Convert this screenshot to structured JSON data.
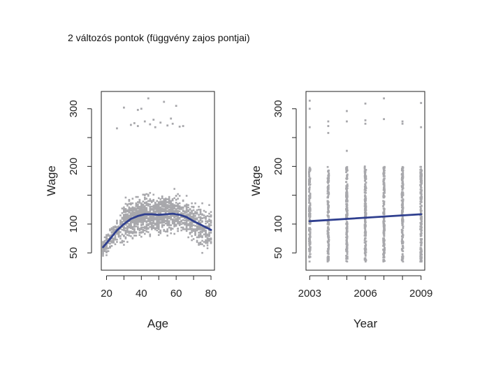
{
  "slide": {
    "title": "2 változós pontok (függvény zajos pontjai)"
  },
  "colors": {
    "points": "#a8a8ac",
    "curve": "#2f3f8f",
    "axis": "#222222"
  },
  "chart_data": [
    {
      "type": "scatter",
      "xlabel": "Age",
      "ylabel": "Wage",
      "xlim": [
        17,
        82
      ],
      "ylim": [
        20,
        330
      ],
      "xticks": [
        20,
        30,
        40,
        50,
        60,
        70,
        80
      ],
      "xtick_labels": [
        "20",
        "",
        "40",
        "",
        "60",
        "",
        "80"
      ],
      "yticks": [
        50,
        100,
        150,
        200,
        250,
        300
      ],
      "ytick_labels": [
        "50",
        "100",
        "",
        "200",
        "",
        "300"
      ],
      "fit_curve": {
        "x": [
          18,
          20,
          23,
          26,
          30,
          34,
          38,
          42,
          46,
          50,
          54,
          58,
          62,
          66,
          70,
          74,
          78,
          80
        ],
        "y": [
          60,
          67,
          78,
          89,
          100,
          109,
          114,
          117,
          117,
          116,
          117,
          118,
          116,
          112,
          105,
          99,
          93,
          90
        ]
      },
      "points": [
        [
          34,
          272
        ],
        [
          36,
          275
        ],
        [
          38,
          270
        ],
        [
          42,
          278
        ],
        [
          45,
          273
        ],
        [
          48,
          268
        ],
        [
          51,
          276
        ],
        [
          55,
          271
        ],
        [
          58,
          274
        ],
        [
          62,
          269
        ],
        [
          40,
          300
        ],
        [
          44,
          318
        ],
        [
          53,
          312
        ],
        [
          38,
          298
        ],
        [
          60,
          305
        ],
        [
          26,
          266
        ],
        [
          64,
          270
        ],
        [
          30,
          302
        ],
        [
          57,
          283
        ],
        [
          47,
          281
        ]
      ],
      "band_ranges": [
        [
          20,
          80,
          40,
          200
        ]
      ]
    },
    {
      "type": "scatter",
      "xlabel": "Year",
      "ylabel": "Wage",
      "xlim": [
        2002.8,
        2009.2
      ],
      "ylim": [
        20,
        330
      ],
      "xticks": [
        2003,
        2004,
        2005,
        2006,
        2007,
        2008,
        2009
      ],
      "xtick_labels": [
        "2003",
        "",
        "",
        "2006",
        "",
        "",
        "2009"
      ],
      "yticks": [
        50,
        100,
        150,
        200,
        250,
        300
      ],
      "ytick_labels": [
        "50",
        "100",
        "",
        "200",
        "",
        "300"
      ],
      "fit_curve": {
        "x": [
          2003,
          2009
        ],
        "y": [
          105,
          117
        ]
      },
      "points": [
        [
          2003,
          314
        ],
        [
          2003,
          300
        ],
        [
          2003,
          268
        ],
        [
          2004,
          278
        ],
        [
          2004,
          270
        ],
        [
          2004,
          258
        ],
        [
          2005,
          296
        ],
        [
          2005,
          278
        ],
        [
          2005,
          227
        ],
        [
          2006,
          309
        ],
        [
          2006,
          280
        ],
        [
          2006,
          274
        ],
        [
          2007,
          318
        ],
        [
          2007,
          282
        ],
        [
          2008,
          278
        ],
        [
          2008,
          274
        ],
        [
          2009,
          310
        ],
        [
          2009,
          268
        ]
      ],
      "columns": [
        2003,
        2004,
        2005,
        2006,
        2007,
        2008,
        2009
      ],
      "column_range": [
        35,
        200
      ]
    }
  ]
}
